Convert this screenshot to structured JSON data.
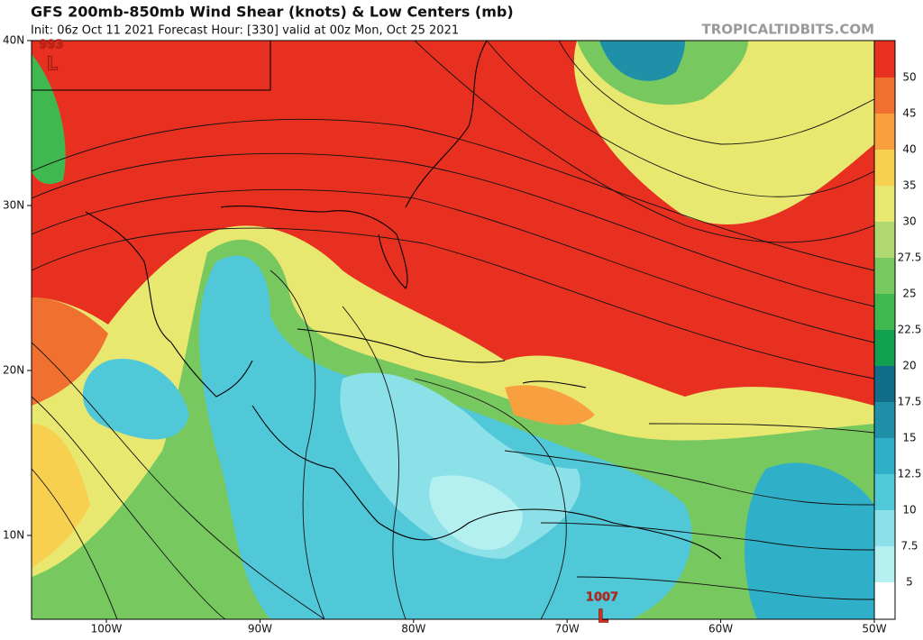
{
  "header": {
    "title": "GFS 200mb-850mb Wind Shear (knots) & Low Centers (mb)",
    "subtitle": "Init: 06z Oct 11 2021   Forecast Hour: [330]   valid at 00z Mon, Oct 25 2021",
    "source": "TROPICALTIDBITS.COM"
  },
  "latitude_labels": [
    "40N",
    "30N",
    "20N",
    "10N"
  ],
  "longitude_labels": [
    "100W",
    "90W",
    "80W",
    "70W",
    "60W",
    "50W"
  ],
  "colorbar": {
    "labels": [
      "50",
      "45",
      "40",
      "35",
      "30",
      "27.5",
      "25",
      "22.5",
      "20",
      "17.5",
      "15",
      "12.5",
      "10",
      "7.5",
      "5"
    ]
  },
  "low_centers": [
    {
      "pressure": "993",
      "symbol": "L"
    },
    {
      "pressure": "1007",
      "symbol": "L"
    }
  ]
}
